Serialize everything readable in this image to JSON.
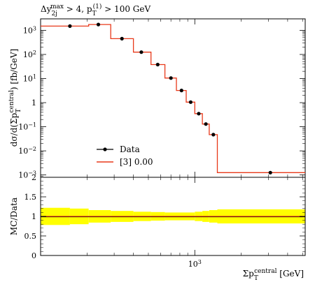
{
  "chart_data": {
    "type": "step",
    "title_parts": {
      "delta": "Δy",
      "sup": "max",
      "sub": "2j",
      "mid": " > 4, p",
      "sup2": "(1)",
      "sub2": "T",
      "tail": " > 100 GeV"
    },
    "main_panel": {
      "ylabel_parts": {
        "a": "dσ/d(Σp",
        "sup": "central",
        "sub": "T",
        "b": ") [fb/GeV]"
      },
      "yscale": "log",
      "ylim": [
        0.0008,
        3000
      ],
      "yticks": [
        {
          "value": 0.001,
          "base": "10",
          "exp": "−3"
        },
        {
          "value": 0.01,
          "base": "10",
          "exp": "−2"
        },
        {
          "value": 0.1,
          "base": "10",
          "exp": "−1"
        },
        {
          "value": 1,
          "base": "1",
          "exp": ""
        },
        {
          "value": 10,
          "base": "10",
          "exp": "1"
        },
        {
          "value": 100,
          "base": "10",
          "exp": "2"
        },
        {
          "value": 1000,
          "base": "10",
          "exp": "3"
        }
      ],
      "data_points": [
        {
          "x": 155,
          "y": 1500
        },
        {
          "x": 237,
          "y": 1750
        },
        {
          "x": 337,
          "y": 450
        },
        {
          "x": 450,
          "y": 125
        },
        {
          "x": 575,
          "y": 38
        },
        {
          "x": 700,
          "y": 10.5
        },
        {
          "x": 820,
          "y": 3.2
        },
        {
          "x": 940,
          "y": 1.05
        },
        {
          "x": 1060,
          "y": 0.35
        },
        {
          "x": 1180,
          "y": 0.13
        },
        {
          "x": 1320,
          "y": 0.047
        },
        {
          "x": 3090,
          "y": 0.00125
        }
      ],
      "mc_bins": [
        {
          "lo": 100,
          "hi": 205,
          "y": 1500
        },
        {
          "lo": 205,
          "hi": 285,
          "y": 1750
        },
        {
          "lo": 285,
          "hi": 400,
          "y": 450
        },
        {
          "lo": 400,
          "hi": 520,
          "y": 125
        },
        {
          "lo": 520,
          "hi": 640,
          "y": 38
        },
        {
          "lo": 640,
          "hi": 760,
          "y": 10.5
        },
        {
          "lo": 760,
          "hi": 880,
          "y": 3.2
        },
        {
          "lo": 880,
          "hi": 1000,
          "y": 1.05
        },
        {
          "lo": 1000,
          "hi": 1120,
          "y": 0.35
        },
        {
          "lo": 1120,
          "hi": 1240,
          "y": 0.13
        },
        {
          "lo": 1240,
          "hi": 1400,
          "y": 0.047
        },
        {
          "lo": 1400,
          "hi": 5200,
          "y": 0.00125
        }
      ],
      "legend": [
        {
          "label": "Data",
          "kind": "marker"
        },
        {
          "label": "[3] 0.00",
          "kind": "line",
          "color": "#e8391a"
        }
      ],
      "legend_position": "bottom-left"
    },
    "ratio_panel": {
      "ylabel": "MC/Data",
      "ylim": [
        0,
        2
      ],
      "yticks": [
        {
          "value": 0,
          "label": "0"
        },
        {
          "value": 0.5,
          "label": "0.5"
        },
        {
          "value": 1,
          "label": "1"
        },
        {
          "value": 1.5,
          "label": "1.5"
        },
        {
          "value": 2,
          "label": "2"
        }
      ],
      "band_color": "#ffff00",
      "band_bins": [
        {
          "lo": 100,
          "hi": 155,
          "lo_y": 0.78,
          "hi_y": 1.22
        },
        {
          "lo": 155,
          "hi": 205,
          "lo_y": 0.8,
          "hi_y": 1.2
        },
        {
          "lo": 205,
          "hi": 285,
          "lo_y": 0.84,
          "hi_y": 1.16
        },
        {
          "lo": 285,
          "hi": 400,
          "lo_y": 0.86,
          "hi_y": 1.14
        },
        {
          "lo": 400,
          "hi": 520,
          "lo_y": 0.88,
          "hi_y": 1.12
        },
        {
          "lo": 520,
          "hi": 640,
          "lo_y": 0.89,
          "hi_y": 1.11
        },
        {
          "lo": 640,
          "hi": 760,
          "lo_y": 0.9,
          "hi_y": 1.1
        },
        {
          "lo": 760,
          "hi": 880,
          "lo_y": 0.9,
          "hi_y": 1.1
        },
        {
          "lo": 880,
          "hi": 1000,
          "lo_y": 0.9,
          "hi_y": 1.1
        },
        {
          "lo": 1000,
          "hi": 1120,
          "lo_y": 0.88,
          "hi_y": 1.12
        },
        {
          "lo": 1120,
          "hi": 1240,
          "lo_y": 0.86,
          "hi_y": 1.14
        },
        {
          "lo": 1240,
          "hi": 1400,
          "lo_y": 0.84,
          "hi_y": 1.16
        },
        {
          "lo": 1400,
          "hi": 5200,
          "lo_y": 0.82,
          "hi_y": 1.18
        }
      ],
      "ratio_value": 1.0
    },
    "xaxis": {
      "scale": "log",
      "xlim": [
        100,
        5200
      ],
      "label_parts": {
        "a": "Σp",
        "sup": "central",
        "sub": "T",
        "b": " [GeV]"
      },
      "major_ticks": [
        {
          "value": 1000,
          "base": "10",
          "exp": "3"
        }
      ],
      "minor_ticks": [
        100,
        200,
        300,
        400,
        500,
        600,
        700,
        800,
        900,
        2000,
        3000,
        4000,
        5000
      ]
    }
  }
}
